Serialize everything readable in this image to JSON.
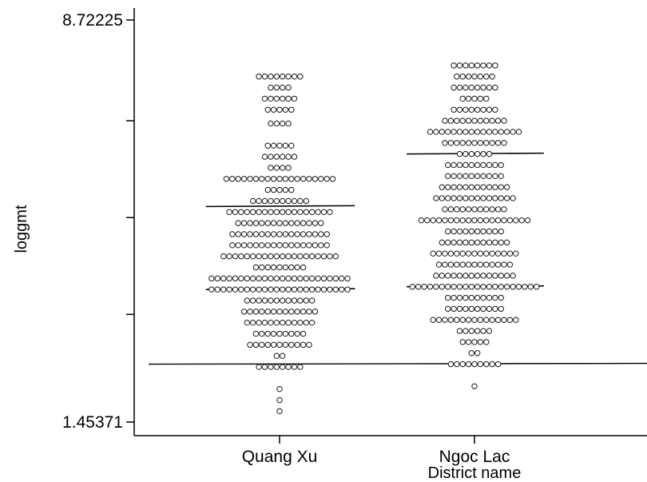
{
  "chart_data": {
    "type": "dotplot",
    "title": "",
    "ylabel": "loggmt",
    "xlabel": "District name",
    "ylim": [
      1.45371,
      8.72225
    ],
    "yticks": [
      {
        "value": 8.72225,
        "label": "8.72225"
      },
      {
        "value": 6.9,
        "label": ""
      },
      {
        "value": 5.15,
        "label": ""
      },
      {
        "value": 3.4,
        "label": ""
      },
      {
        "value": 1.45371,
        "label": "1.45371"
      }
    ],
    "categories": [
      "Quang Xu",
      "Ngoc Lac"
    ],
    "overall_reference_line": 2.5,
    "groups": [
      {
        "name": "Quang Xu",
        "median": 5.35,
        "quartile_line": 3.85,
        "dot_rows": [
          {
            "y": 7.7,
            "count": 8
          },
          {
            "y": 7.5,
            "count": 4
          },
          {
            "y": 7.3,
            "count": 6
          },
          {
            "y": 7.1,
            "count": 5
          },
          {
            "y": 6.85,
            "count": 4
          },
          {
            "y": 6.45,
            "count": 5
          },
          {
            "y": 6.25,
            "count": 6
          },
          {
            "y": 6.05,
            "count": 4
          },
          {
            "y": 5.85,
            "count": 19
          },
          {
            "y": 5.65,
            "count": 5
          },
          {
            "y": 5.45,
            "count": 10
          },
          {
            "y": 5.25,
            "count": 18
          },
          {
            "y": 5.05,
            "count": 15
          },
          {
            "y": 4.85,
            "count": 17
          },
          {
            "y": 4.65,
            "count": 17
          },
          {
            "y": 4.45,
            "count": 20
          },
          {
            "y": 4.25,
            "count": 9
          },
          {
            "y": 4.05,
            "count": 24
          },
          {
            "y": 3.85,
            "count": 24
          },
          {
            "y": 3.65,
            "count": 12
          },
          {
            "y": 3.45,
            "count": 13
          },
          {
            "y": 3.25,
            "count": 12
          },
          {
            "y": 3.05,
            "count": 9
          },
          {
            "y": 2.85,
            "count": 11
          },
          {
            "y": 2.65,
            "count": 2
          },
          {
            "y": 2.45,
            "count": 8
          },
          {
            "y": 2.05,
            "count": 1
          },
          {
            "y": 1.85,
            "count": 1
          },
          {
            "y": 1.65,
            "count": 1
          }
        ]
      },
      {
        "name": "Ngoc Lac",
        "median": 6.3,
        "quartile_line": 3.9,
        "dot_rows": [
          {
            "y": 7.9,
            "count": 8
          },
          {
            "y": 7.7,
            "count": 7
          },
          {
            "y": 7.5,
            "count": 8
          },
          {
            "y": 7.3,
            "count": 5
          },
          {
            "y": 7.1,
            "count": 8
          },
          {
            "y": 6.9,
            "count": 11
          },
          {
            "y": 6.7,
            "count": 16
          },
          {
            "y": 6.5,
            "count": 11
          },
          {
            "y": 6.3,
            "count": 6
          },
          {
            "y": 6.1,
            "count": 10
          },
          {
            "y": 5.9,
            "count": 10
          },
          {
            "y": 5.7,
            "count": 12
          },
          {
            "y": 5.5,
            "count": 14
          },
          {
            "y": 5.3,
            "count": 11
          },
          {
            "y": 5.1,
            "count": 19
          },
          {
            "y": 4.9,
            "count": 10
          },
          {
            "y": 4.7,
            "count": 12
          },
          {
            "y": 4.5,
            "count": 15
          },
          {
            "y": 4.3,
            "count": 13
          },
          {
            "y": 4.1,
            "count": 14
          },
          {
            "y": 3.9,
            "count": 22
          },
          {
            "y": 3.7,
            "count": 10
          },
          {
            "y": 3.5,
            "count": 10
          },
          {
            "y": 3.3,
            "count": 15
          },
          {
            "y": 3.1,
            "count": 6
          },
          {
            "y": 2.9,
            "count": 5
          },
          {
            "y": 2.7,
            "count": 2
          },
          {
            "y": 2.5,
            "count": 9
          },
          {
            "y": 2.1,
            "count": 1
          }
        ]
      }
    ],
    "colors": {
      "dot_stroke": "#1a1a1a",
      "line": "#000000",
      "background": "#ffffff"
    }
  }
}
